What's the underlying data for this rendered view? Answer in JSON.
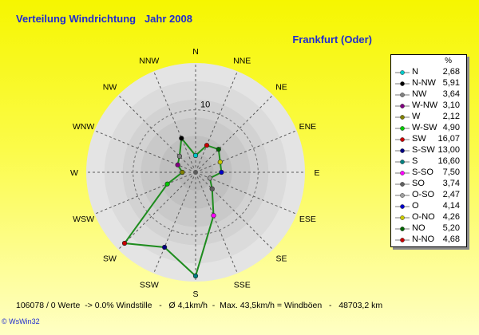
{
  "header": {
    "title": "Verteilung Windrichtung   Jahr 2008",
    "location": "Frankfurt (Oder)"
  },
  "legend": {
    "unit": "%",
    "items": [
      {
        "label": "N",
        "value": "2,68",
        "color": "#00c8c8"
      },
      {
        "label": "N-NW",
        "value": "5,91",
        "color": "#000000"
      },
      {
        "label": "NW",
        "value": "3,64",
        "color": "#808080"
      },
      {
        "label": "W-NW",
        "value": "3,10",
        "color": "#800080"
      },
      {
        "label": "W",
        "value": "2,12",
        "color": "#808000"
      },
      {
        "label": "W-SW",
        "value": "4,90",
        "color": "#00c800"
      },
      {
        "label": "SW",
        "value": "16,07",
        "color": "#c80000"
      },
      {
        "label": "S-SW",
        "value": "13,00",
        "color": "#000080"
      },
      {
        "label": "S",
        "value": "16,60",
        "color": "#008080"
      },
      {
        "label": "S-SO",
        "value": "7,50",
        "color": "#ff00ff"
      },
      {
        "label": "SO",
        "value": "3,74",
        "color": "#606060"
      },
      {
        "label": "O-SO",
        "value": "2,47",
        "color": "#a0a0a0"
      },
      {
        "label": "O",
        "value": "4,14",
        "color": "#0000c8"
      },
      {
        "label": "O-NO",
        "value": "4,26",
        "color": "#c8c800"
      },
      {
        "label": "NO",
        "value": "5,20",
        "color": "#006400"
      },
      {
        "label": "N-NO",
        "value": "4,68",
        "color": "#c80000"
      }
    ]
  },
  "chart_data": {
    "type": "radar",
    "ring_label": "10",
    "r_max": 17.5,
    "directions": [
      "N",
      "NNE",
      "NE",
      "ENE",
      "E",
      "ESE",
      "SE",
      "SSE",
      "S",
      "SSW",
      "SW",
      "WSW",
      "W",
      "WNW",
      "NW",
      "NNW"
    ],
    "series": [
      {
        "values": [
          2.68,
          4.68,
          5.2,
          4.26,
          4.14,
          2.47,
          3.74,
          7.5,
          16.6,
          13.0,
          16.07,
          4.9,
          2.12,
          3.1,
          3.64,
          5.91
        ],
        "line_color": "#1e8c1e"
      }
    ],
    "marker_colors": [
      "#00c8c8",
      "#c80000",
      "#006400",
      "#c8c800",
      "#0000c8",
      "#a0a0a0",
      "#606060",
      "#ff00ff",
      "#008080",
      "#000080",
      "#c80000",
      "#00c800",
      "#808000",
      "#800080",
      "#808080",
      "#000000"
    ]
  },
  "footer": {
    "stats": "106078 / 0 Werte  -> 0.0% Windstille   -   Ø 4,1km/h  -  Max. 43,5km/h = Windböen   -   48703,2 km",
    "credit": "© WsWin32"
  }
}
